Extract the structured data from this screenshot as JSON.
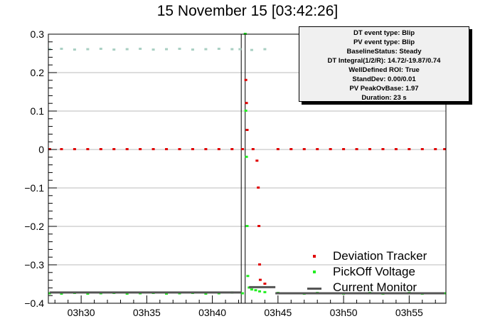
{
  "title": "15 November 15 [03:42:26]",
  "infobox": [
    "DT event type: Blip",
    "PV event type: Blip",
    "BaselineStatus: Steady",
    "DT Integral(1/2/R): 14.72/-19.87/0.74",
    "WellDefined ROI: True",
    "StandDev: 0.00/0.01",
    "PV PeakOvBase: 1.97",
    "Duration: 23 s"
  ],
  "legend": [
    {
      "label": "Deviation Tracker",
      "color": "#e00000",
      "kind": "marker"
    },
    {
      "label": "PickOff Voltage",
      "color": "#22ee22",
      "kind": "marker"
    },
    {
      "label": "Current Monitor",
      "color": "#555555",
      "kind": "line"
    }
  ],
  "chart_data": {
    "type": "scatter",
    "title": "15 November 15 [03:42:26]",
    "xlabel": "",
    "ylabel": "",
    "x_unit": "minutes after 03h00",
    "xlim": [
      27.5,
      57.8
    ],
    "ylim": [
      -0.4,
      0.3
    ],
    "x_tick_values": [
      30,
      35,
      40,
      45,
      50,
      55
    ],
    "x_tick_labels": [
      "03h30",
      "03h35",
      "03h40",
      "03h45",
      "03h50",
      "03h55"
    ],
    "y_ticks": [
      -0.4,
      -0.3,
      -0.2,
      -0.1,
      0,
      0.1,
      0.2,
      0.3
    ],
    "y_tick_labels": [
      "−0.4",
      "−0.3",
      "−0.2",
      "−0.1",
      "0",
      "0.1",
      "0.2",
      "0.3"
    ],
    "grid": "y-only",
    "event_lines_x": [
      42.2,
      42.5
    ],
    "series": [
      {
        "name": "Deviation Tracker",
        "color": "#e00000",
        "points": [
          [
            27.6,
            0.0
          ],
          [
            28.5,
            0.0
          ],
          [
            29.5,
            0.0
          ],
          [
            30.5,
            0.0
          ],
          [
            31.5,
            0.0
          ],
          [
            32.5,
            0.0
          ],
          [
            33.5,
            0.0
          ],
          [
            34.5,
            0.0
          ],
          [
            35.5,
            0.0
          ],
          [
            36.5,
            0.0
          ],
          [
            37.5,
            0.0
          ],
          [
            38.5,
            0.0
          ],
          [
            39.5,
            0.0
          ],
          [
            40.5,
            0.0
          ],
          [
            41.5,
            0.0
          ],
          [
            42.3,
            0.0
          ],
          [
            42.55,
            0.18
          ],
          [
            42.6,
            0.12
          ],
          [
            42.65,
            0.05
          ],
          [
            43.1,
            0.0
          ],
          [
            43.4,
            -0.03
          ],
          [
            43.5,
            -0.1
          ],
          [
            43.55,
            -0.2
          ],
          [
            43.6,
            -0.3
          ],
          [
            43.65,
            -0.34
          ],
          [
            44.0,
            -0.35
          ],
          [
            45.0,
            0.0
          ],
          [
            46.0,
            0.0
          ],
          [
            47.0,
            0.0
          ],
          [
            48.0,
            0.0
          ],
          [
            49.0,
            0.0
          ],
          [
            50.0,
            0.0
          ],
          [
            51.0,
            0.0
          ],
          [
            52.0,
            0.0
          ],
          [
            53.0,
            0.0
          ],
          [
            54.0,
            0.0
          ],
          [
            55.0,
            0.0
          ],
          [
            56.0,
            0.0
          ],
          [
            57.0,
            0.0
          ],
          [
            57.7,
            0.0
          ]
        ]
      },
      {
        "name": "PickOff Voltage",
        "color": "#22ee22",
        "points": [
          [
            27.6,
            -0.375
          ],
          [
            28.5,
            -0.376
          ],
          [
            29.5,
            -0.374
          ],
          [
            30.5,
            -0.376
          ],
          [
            31.5,
            -0.375
          ],
          [
            32.5,
            -0.374
          ],
          [
            33.5,
            -0.376
          ],
          [
            34.5,
            -0.375
          ],
          [
            35.5,
            -0.374
          ],
          [
            36.5,
            -0.376
          ],
          [
            37.5,
            -0.375
          ],
          [
            38.5,
            -0.374
          ],
          [
            39.5,
            -0.376
          ],
          [
            40.5,
            -0.375
          ],
          [
            41.5,
            -0.373
          ],
          [
            42.3,
            -0.375
          ],
          [
            42.5,
            0.3
          ],
          [
            42.55,
            0.1
          ],
          [
            42.6,
            -0.02
          ],
          [
            42.65,
            -0.2
          ],
          [
            42.7,
            -0.33
          ],
          [
            42.8,
            -0.36
          ],
          [
            43.0,
            -0.365
          ],
          [
            43.3,
            -0.367
          ],
          [
            43.6,
            -0.37
          ],
          [
            44.0,
            -0.372
          ],
          [
            45.0,
            -0.374
          ],
          [
            46.0,
            -0.375
          ],
          [
            47.0,
            -0.376
          ],
          [
            48.0,
            -0.374
          ],
          [
            49.0,
            -0.375
          ],
          [
            50.0,
            -0.376
          ],
          [
            51.0,
            -0.375
          ],
          [
            52.0,
            -0.374
          ],
          [
            53.0,
            -0.376
          ],
          [
            54.0,
            -0.375
          ],
          [
            55.0,
            -0.374
          ],
          [
            56.0,
            -0.376
          ],
          [
            57.0,
            -0.375
          ],
          [
            57.7,
            -0.375
          ]
        ]
      },
      {
        "name": "Current Monitor",
        "color": "#555555",
        "segments": [
          [
            [
              27.6,
              -0.372
            ],
            [
              42.2,
              -0.372
            ]
          ],
          [
            [
              42.8,
              -0.358
            ],
            [
              44.8,
              -0.358
            ]
          ],
          [
            [
              44.8,
              -0.374
            ],
            [
              57.7,
              -0.374
            ]
          ]
        ]
      },
      {
        "name": "",
        "color": "#a8cfc2",
        "points": [
          [
            27.6,
            0.26
          ],
          [
            28.5,
            0.261
          ],
          [
            29.5,
            0.259
          ],
          [
            30.5,
            0.26
          ],
          [
            31.5,
            0.261
          ],
          [
            32.5,
            0.259
          ],
          [
            33.5,
            0.26
          ],
          [
            34.5,
            0.261
          ],
          [
            35.5,
            0.259
          ],
          [
            36.5,
            0.26
          ],
          [
            37.5,
            0.261
          ],
          [
            38.5,
            0.259
          ],
          [
            39.5,
            0.26
          ],
          [
            40.5,
            0.261
          ],
          [
            41.5,
            0.26
          ],
          [
            42.1,
            0.26
          ],
          [
            43.0,
            0.258
          ],
          [
            44.0,
            0.26
          ]
        ]
      }
    ]
  }
}
